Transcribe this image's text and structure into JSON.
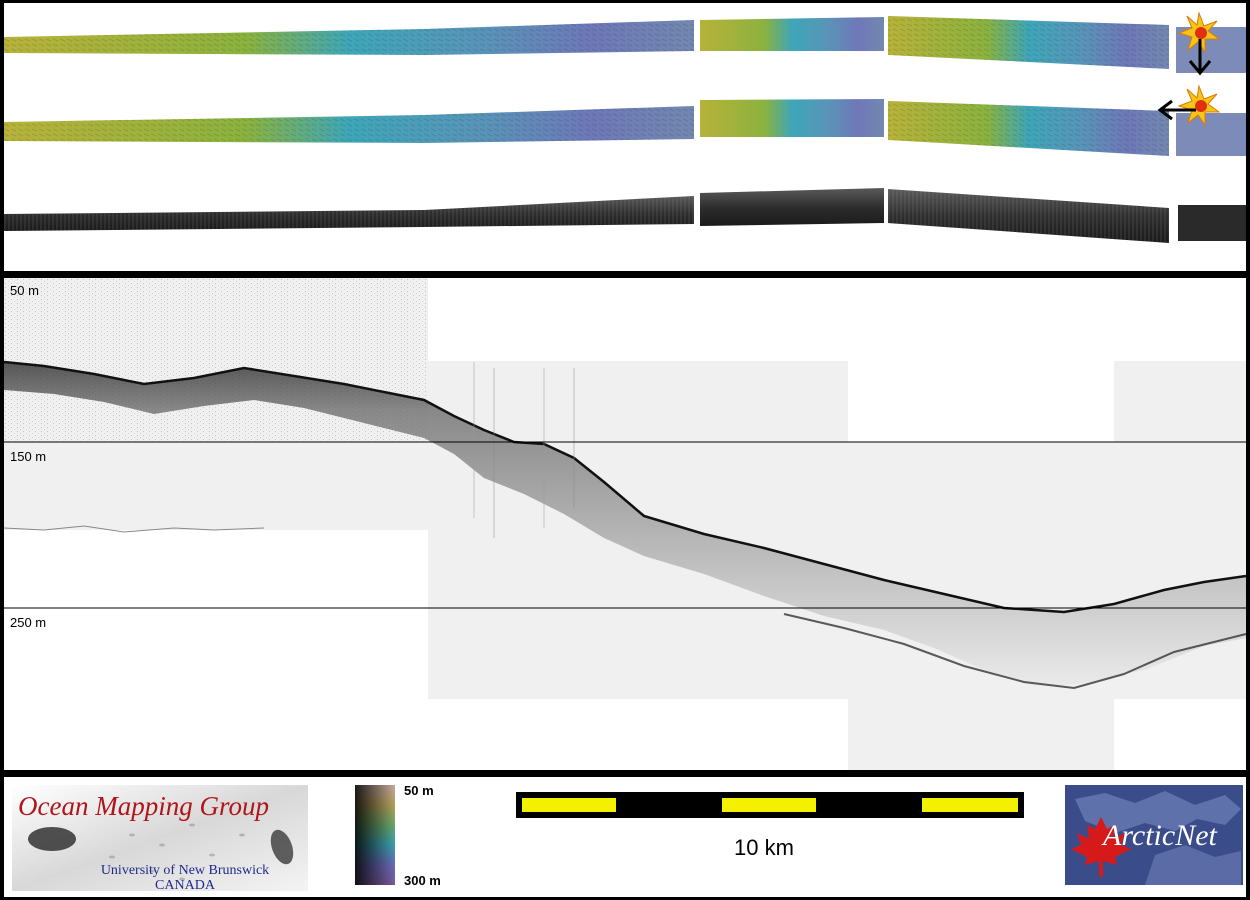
{
  "depth_labels": [
    {
      "text": "50 m"
    },
    {
      "text": "150 m"
    },
    {
      "text": "250 m"
    }
  ],
  "legend": {
    "omg_title": "Ocean Mapping Group",
    "omg_subtitle_1": "University of New Brunswick",
    "omg_subtitle_2": "CANADA",
    "colorbar_top": "50 m",
    "colorbar_bottom": "300 m",
    "scale_label": "10 km",
    "arctic_logo_text": "ArcticNet"
  },
  "colors": {
    "shallow": "#b7b23a",
    "mid": "#3ea6b8",
    "deep": "#6e78b8",
    "scale_yellow": "#f5f000",
    "omg_red": "#b0151a",
    "omg_blue": "#1f2a8a",
    "arctic_red": "#d61a1a",
    "arctic_blue": "#3a4d8a"
  },
  "icons": [
    "sunburst-marker-icon",
    "arrow-down-icon",
    "arrow-left-icon",
    "maple-leaf-icon"
  ]
}
